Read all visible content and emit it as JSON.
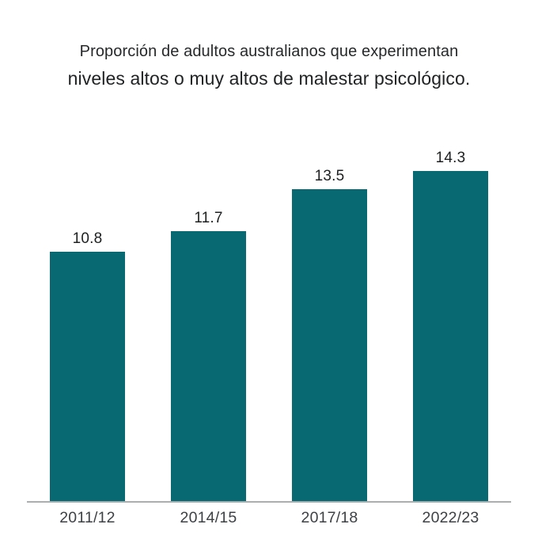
{
  "title": {
    "line1": "Proporción de adultos australianos que experimentan",
    "line2": "niveles altos o muy altos de malestar psicológico."
  },
  "colors": {
    "bar": "#086972",
    "title_text": "#1f2123",
    "value_label_text": "#1d1f20",
    "axis_label_text": "#3d4144",
    "axis_line": "#abaeae",
    "background": "#ffffff"
  },
  "chart_data": {
    "type": "bar",
    "categories": [
      "2011/12",
      "2014/15",
      "2017/18",
      "2022/23"
    ],
    "values": [
      10.8,
      11.7,
      13.5,
      14.3
    ],
    "value_labels": [
      "10.8",
      "11.7",
      "13.5",
      "14.3"
    ],
    "title": "Proporción de adultos australianos que experimentan niveles altos o muy altos de malestar psicológico.",
    "xlabel": "",
    "ylabel": "",
    "ylim": [
      0,
      15
    ],
    "grid": false,
    "legend": false,
    "value_labels_shown": true,
    "baseline_axis_shown": true
  }
}
